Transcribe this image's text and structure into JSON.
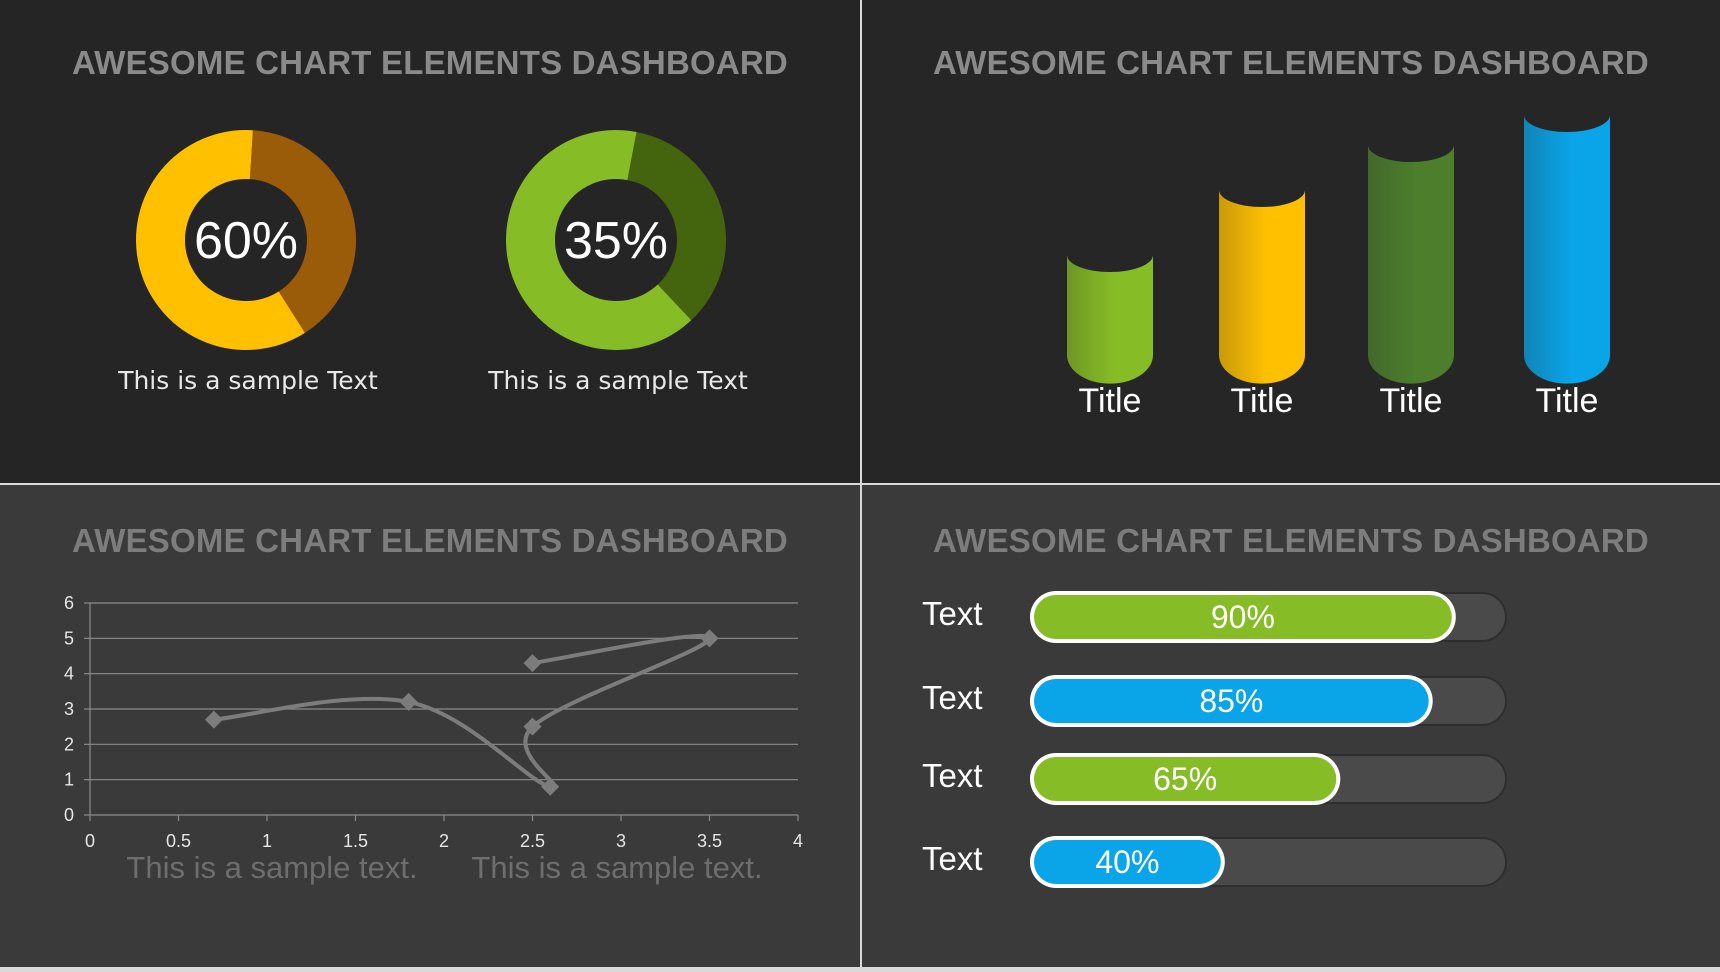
{
  "dashboard": {
    "title": "AWESOME CHART ELEMENTS DASHBOARD"
  },
  "colors": {
    "orange_dark": "#9a5c08",
    "orange": "#ffc000",
    "green": "#86bc25",
    "green_dark": "#44640e",
    "green_mid": "#4c7e2c",
    "blue": "#0aa4e8",
    "grid": "#8c8c8c",
    "line": "#7c7c7c",
    "track": "#4a4a4a"
  },
  "chart_data": [
    {
      "type": "pie",
      "variant": "donut",
      "panel": "top-left",
      "title": "AWESOME CHART ELEMENTS DASHBOARD",
      "donuts": [
        {
          "value": 60,
          "label": "60%",
          "caption": "This is a sample Text",
          "fill_color": "#ffc000",
          "rest_color": "#9a5c08"
        },
        {
          "value": 35,
          "label": "35%",
          "caption": "This is a sample Text",
          "fill_color": "#44640e",
          "rest_color": "#86bc25"
        }
      ]
    },
    {
      "type": "bar",
      "variant": "cylinder",
      "panel": "top-right",
      "title": "AWESOME CHART ELEMENTS DASHBOARD",
      "categories": [
        "Title",
        "Title",
        "Title",
        "Title"
      ],
      "values": [
        1.0,
        1.65,
        2.1,
        2.4
      ],
      "bar_colors": [
        "#86bc25",
        "#ffc000",
        "#4c7e2c",
        "#0aa4e8"
      ]
    },
    {
      "type": "scatter",
      "variant": "smooth-line",
      "panel": "bottom-left",
      "title": "AWESOME CHART ELEMENTS DASHBOARD",
      "x": [
        0.7,
        1.8,
        2.6,
        2.5,
        3.5,
        2.5
      ],
      "y": [
        2.7,
        3.2,
        0.8,
        2.5,
        5.0,
        4.3
      ],
      "xlim": [
        0,
        4
      ],
      "ylim": [
        0,
        6
      ],
      "x_ticks": [
        "0",
        "0.5",
        "1",
        "1.5",
        "2",
        "2.5",
        "3",
        "3.5",
        "4"
      ],
      "y_ticks": [
        "0",
        "1",
        "2",
        "3",
        "4",
        "5",
        "6"
      ],
      "grid": true,
      "captions": [
        "This is a sample text.",
        "This is a sample text."
      ]
    },
    {
      "type": "bar",
      "variant": "horizontal-progress",
      "panel": "bottom-right",
      "title": "AWESOME CHART ELEMENTS DASHBOARD",
      "categories": [
        "Text",
        "Text",
        "Text",
        "Text"
      ],
      "values": [
        90,
        85,
        65,
        40
      ],
      "value_labels": [
        "90%",
        "85%",
        "65%",
        "40%"
      ],
      "xlim": [
        0,
        100
      ],
      "bar_colors": [
        "#86bc25",
        "#0aa4e8",
        "#86bc25",
        "#0aa4e8"
      ]
    }
  ]
}
